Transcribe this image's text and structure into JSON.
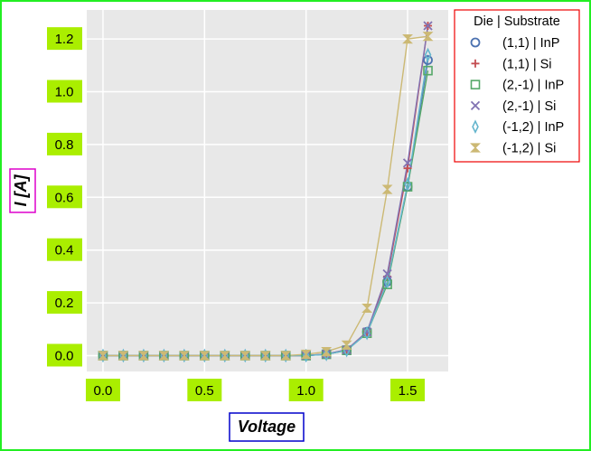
{
  "chart_data": {
    "type": "line",
    "xlabel": "Voltage",
    "ylabel": "I [A]",
    "xlim": [
      -0.08,
      1.7
    ],
    "ylim": [
      -0.06,
      1.31
    ],
    "x_ticks": [
      0.0,
      0.5,
      1.0,
      1.5
    ],
    "x_tick_labels": [
      "0.0",
      "0.5",
      "1.0",
      "1.5"
    ],
    "y_ticks": [
      0.0,
      0.2,
      0.4,
      0.6,
      0.8,
      1.0,
      1.2
    ],
    "y_tick_labels": [
      "0.0",
      "0.2",
      "0.4",
      "0.6",
      "0.8",
      "1.0",
      "1.2"
    ],
    "grid": true,
    "legend": {
      "title": "Die | Substrate",
      "placement": "outside-right"
    },
    "x": [
      0.0,
      0.1,
      0.2,
      0.3,
      0.4,
      0.5,
      0.6,
      0.7,
      0.8,
      0.9,
      1.0,
      1.1,
      1.2,
      1.3,
      1.4,
      1.5,
      1.6
    ],
    "series": [
      {
        "name": "(1,1) | InP",
        "marker": "circle",
        "color": "#4c72b0",
        "values": [
          0.0,
          0.0,
          0.0,
          0.0,
          0.0,
          0.0,
          0.0,
          0.0,
          0.0,
          0.0,
          0.0,
          0.005,
          0.02,
          0.09,
          0.28,
          0.64,
          1.12
        ]
      },
      {
        "name": "(1,1) | Si",
        "marker": "plus",
        "color": "#c44e52",
        "values": [
          0.0,
          0.0,
          0.0,
          0.0,
          0.0,
          0.0,
          0.0,
          0.0,
          0.0,
          0.0,
          0.0,
          0.006,
          0.022,
          0.09,
          0.3,
          0.71,
          1.25
        ]
      },
      {
        "name": "(2,-1) | InP",
        "marker": "square",
        "color": "#55a868",
        "values": [
          0.0,
          0.0,
          0.0,
          0.0,
          0.0,
          0.0,
          0.0,
          0.0,
          0.0,
          0.0,
          0.0,
          0.005,
          0.02,
          0.085,
          0.27,
          0.64,
          1.08
        ]
      },
      {
        "name": "(2,-1) | Si",
        "marker": "x",
        "color": "#8172b2",
        "values": [
          0.0,
          0.0,
          0.0,
          0.0,
          0.0,
          0.0,
          0.0,
          0.0,
          0.0,
          0.0,
          0.0,
          0.006,
          0.022,
          0.09,
          0.31,
          0.73,
          1.25
        ]
      },
      {
        "name": "(-1,2) | InP",
        "marker": "thin_diamond",
        "color": "#64b5cd",
        "values": [
          0.0,
          0.0,
          0.0,
          0.0,
          0.0,
          0.0,
          0.0,
          0.0,
          0.0,
          0.0,
          0.0,
          0.005,
          0.02,
          0.085,
          0.28,
          0.65,
          1.14
        ]
      },
      {
        "name": "(-1,2) | Si",
        "marker": "hourglass",
        "color": "#ccb974",
        "values": [
          0.0,
          0.0,
          0.0,
          0.0,
          0.0,
          0.0,
          0.0,
          0.0,
          0.0,
          0.0,
          0.005,
          0.015,
          0.04,
          0.18,
          0.63,
          1.2,
          1.21
        ]
      }
    ]
  }
}
